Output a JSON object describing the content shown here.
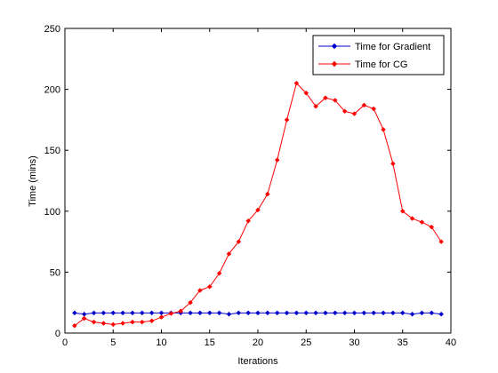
{
  "chart_data": {
    "type": "line",
    "title": "",
    "xlabel": "Iterations",
    "ylabel": "Time (mins)",
    "xlim": [
      0,
      40
    ],
    "ylim": [
      0,
      250
    ],
    "xticks": [
      0,
      5,
      10,
      15,
      20,
      25,
      30,
      35,
      40
    ],
    "yticks": [
      0,
      50,
      100,
      150,
      200,
      250
    ],
    "grid": false,
    "legend_position": "top-right",
    "series": [
      {
        "name": "Time for Gradient",
        "color": "#0000cc",
        "marker": "diamond",
        "x": [
          1,
          2,
          3,
          4,
          5,
          6,
          7,
          8,
          9,
          10,
          11,
          12,
          13,
          14,
          15,
          16,
          17,
          18,
          19,
          20,
          21,
          22,
          23,
          24,
          25,
          26,
          27,
          28,
          29,
          30,
          31,
          32,
          33,
          34,
          35,
          36,
          37,
          38,
          39
        ],
        "values": [
          16.5,
          15.5,
          16.5,
          16.5,
          16.5,
          16.5,
          16.5,
          16.5,
          16.5,
          16.5,
          16.5,
          16.5,
          16.5,
          16.5,
          16.5,
          16.5,
          15.5,
          16.5,
          16.5,
          16.5,
          16.5,
          16.5,
          16.5,
          16.5,
          16.5,
          16.5,
          16.5,
          16.5,
          16.5,
          16.5,
          16.5,
          16.5,
          16.5,
          16.5,
          16.5,
          15.5,
          16.5,
          16.5,
          15.5
        ]
      },
      {
        "name": "Time for CG",
        "color": "#ff0000",
        "marker": "diamond",
        "x": [
          1,
          2,
          3,
          4,
          5,
          6,
          7,
          8,
          9,
          10,
          11,
          12,
          13,
          14,
          15,
          16,
          17,
          18,
          19,
          20,
          21,
          22,
          23,
          24,
          25,
          26,
          27,
          28,
          29,
          30,
          31,
          32,
          33,
          34,
          35,
          36,
          37,
          38,
          39
        ],
        "values": [
          6,
          12,
          9,
          8,
          7,
          8,
          9,
          9,
          10,
          13,
          16,
          18,
          25,
          35,
          38,
          49,
          65,
          75,
          92,
          101,
          114,
          142,
          175,
          205,
          197,
          186,
          193,
          191,
          182,
          180,
          187,
          184,
          167,
          139,
          100,
          94,
          91,
          87,
          75
        ]
      }
    ]
  }
}
